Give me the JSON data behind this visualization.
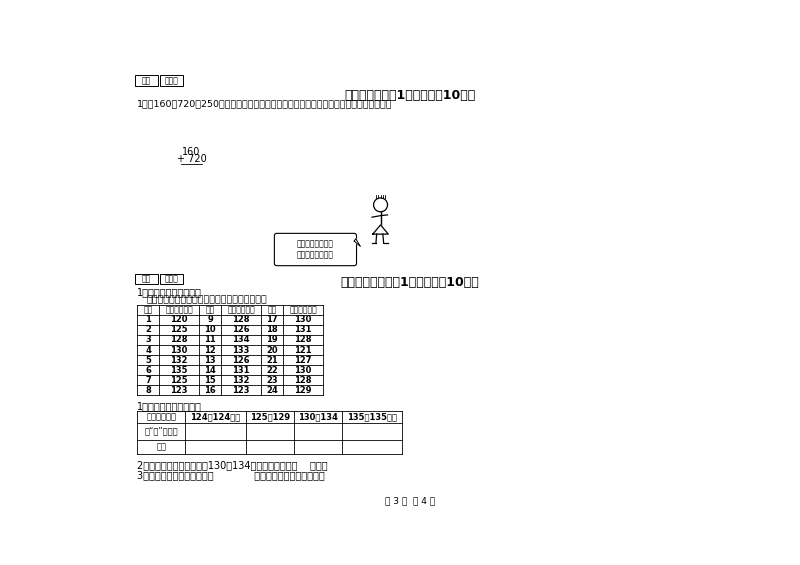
{
  "bg_color": "#ffffff",
  "section10_title": "十、综合题（共1大题，共膈10分）",
  "section10_q1": "1、从160、720、250中任取两个数，能组成多少个加、减算式？在下面写出来，并计算。",
  "section11_title": "十一、附加题（共1大题，共膈10分）",
  "section11_q1": "1、观察分析，我统计。",
  "section11_desc": "下面是希望小学二年级一班女生身高统计情况。",
  "table_data": [
    [
      1,
      120,
      9,
      128,
      17,
      130
    ],
    [
      2,
      125,
      10,
      126,
      18,
      131
    ],
    [
      3,
      128,
      11,
      134,
      19,
      128
    ],
    [
      4,
      130,
      12,
      133,
      20,
      121
    ],
    [
      5,
      132,
      13,
      126,
      21,
      127
    ],
    [
      6,
      135,
      14,
      131,
      22,
      130
    ],
    [
      7,
      125,
      15,
      132,
      23,
      128
    ],
    [
      8,
      123,
      16,
      123,
      24,
      129
    ]
  ],
  "stat_row1": "画“正”字统计",
  "stat_row2": "人数",
  "q2": "2、二年级一班女生身高在130－134厘米范围内的有（    ）人。",
  "q3": "3、二年级一班女生身高在（             ）厘米范围内的人数最多。",
  "score_label": "得分",
  "review_label": "评卷人",
  "page_footer": "第 3 页  共 4 页",
  "bubble_text": "要想都写来，可要\n好好动动脑筋哦！",
  "flower1_line1": "160",
  "flower1_line2": "+ 720",
  "stat_h0": "身高（厘米）",
  "stat_h1": "124及124以下",
  "stat_h2": "125～129",
  "stat_h3": "130～134",
  "stat_h4": "135及135以上",
  "tbl_h0": "学号",
  "tbl_h1": "身高（厘米）",
  "stat_task": "1、完成下面的统计表。"
}
